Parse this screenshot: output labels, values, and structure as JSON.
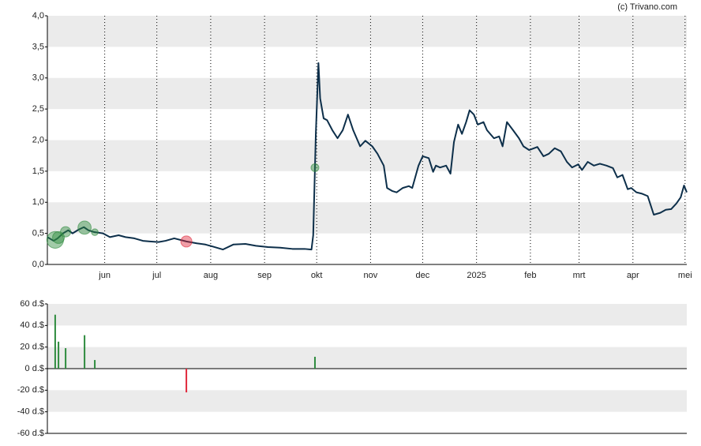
{
  "chart_data": [
    {
      "type": "line",
      "source": "(c) Trivano.com",
      "color": "#0d2f4a",
      "grid": true,
      "xlim": [
        0,
        368
      ],
      "xticks": [
        {
          "value": 33,
          "label": "jun"
        },
        {
          "value": 63,
          "label": "jul"
        },
        {
          "value": 94,
          "label": "aug"
        },
        {
          "value": 125,
          "label": "sep"
        },
        {
          "value": 155,
          "label": "okt"
        },
        {
          "value": 186,
          "label": "nov"
        },
        {
          "value": 216,
          "label": "dec"
        },
        {
          "value": 247,
          "label": "2025"
        },
        {
          "value": 278,
          "label": "feb"
        },
        {
          "value": 306,
          "label": "mrt"
        },
        {
          "value": 337,
          "label": "apr"
        },
        {
          "value": 367,
          "label": "mei"
        }
      ],
      "ylim": [
        0,
        4
      ],
      "yticks": [
        {
          "value": 0,
          "label": "0,0"
        },
        {
          "value": 0.5,
          "label": "0,5"
        },
        {
          "value": 1,
          "label": "1,0"
        },
        {
          "value": 1.5,
          "label": "1,5"
        },
        {
          "value": 2,
          "label": "2,0"
        },
        {
          "value": 2.5,
          "label": "2,5"
        },
        {
          "value": 3,
          "label": "3,0"
        },
        {
          "value": 3.5,
          "label": "3,5"
        },
        {
          "value": 4,
          "label": "4,0"
        }
      ],
      "x": [
        0,
        3.6,
        5.9,
        9,
        12,
        14.5,
        18,
        21,
        23.6,
        27,
        32,
        36,
        41,
        45,
        50,
        55,
        59,
        64,
        68,
        73,
        80,
        86,
        91,
        95,
        101,
        107,
        114,
        120,
        127,
        134,
        141,
        148,
        152,
        153,
        154.5,
        156,
        157,
        159,
        161,
        164,
        167,
        170,
        173,
        176,
        180,
        183,
        187,
        190,
        193.6,
        195.5,
        198.6,
        201,
        204.5,
        208,
        210,
        213.6,
        216,
        219.5,
        222,
        223.6,
        226,
        229.5,
        232,
        234,
        236.4,
        238.6,
        241,
        243,
        245.5,
        247.7,
        251,
        253,
        257,
        260,
        262,
        264.5,
        268,
        271.4,
        274,
        277.3,
        282,
        285.5,
        288.6,
        292,
        295.5,
        299,
        302,
        305.5,
        307.7,
        311,
        314.5,
        318,
        321.8,
        325.5,
        328,
        331,
        334,
        336,
        339,
        342,
        345.5,
        349,
        352.7,
        355.9,
        359,
        362,
        364.5,
        366.4,
        368
      ],
      "values": [
        0.44,
        0.38,
        0.42,
        0.5,
        0.55,
        0.5,
        0.56,
        0.6,
        0.55,
        0.52,
        0.5,
        0.44,
        0.47,
        0.44,
        0.42,
        0.38,
        0.37,
        0.36,
        0.38,
        0.42,
        0.37,
        0.34,
        0.32,
        0.29,
        0.24,
        0.32,
        0.33,
        0.3,
        0.28,
        0.27,
        0.25,
        0.25,
        0.24,
        0.47,
        2.1,
        3.24,
        2.67,
        2.35,
        2.32,
        2.16,
        2.03,
        2.16,
        2.41,
        2.16,
        1.9,
        1.99,
        1.9,
        1.78,
        1.59,
        1.23,
        1.18,
        1.16,
        1.23,
        1.26,
        1.23,
        1.59,
        1.74,
        1.71,
        1.49,
        1.59,
        1.56,
        1.59,
        1.46,
        1.97,
        2.25,
        2.1,
        2.29,
        2.48,
        2.41,
        2.25,
        2.29,
        2.16,
        2.03,
        2.06,
        1.9,
        2.29,
        2.16,
        2.03,
        1.9,
        1.84,
        1.89,
        1.74,
        1.78,
        1.87,
        1.82,
        1.65,
        1.56,
        1.61,
        1.52,
        1.65,
        1.59,
        1.62,
        1.59,
        1.55,
        1.4,
        1.44,
        1.21,
        1.23,
        1.16,
        1.14,
        1.1,
        0.8,
        0.83,
        0.88,
        0.89,
        0.98,
        1.08,
        1.27,
        1.16
      ]
    },
    {
      "type": "bar",
      "xlim": [
        0,
        368
      ],
      "colors": {
        "positive": "#2e8b3e",
        "negative": "#e0283c"
      },
      "ylim": [
        -60,
        60
      ],
      "yticks": [
        {
          "value": 60,
          "label": "60 d.$"
        },
        {
          "value": 40,
          "label": "40 d.$"
        },
        {
          "value": 20,
          "label": "20 d.$"
        },
        {
          "value": 0,
          "label": "0 d.$"
        },
        {
          "value": -20,
          "label": "-20 d.$"
        },
        {
          "value": -40,
          "label": "-40 d.$"
        },
        {
          "value": -60,
          "label": "-60 d.$"
        }
      ],
      "x": [
        4.5,
        6.4,
        10.5,
        21.4,
        27.3,
        80,
        154
      ],
      "values": [
        50,
        25,
        19,
        31,
        8,
        -22,
        11
      ]
    }
  ]
}
